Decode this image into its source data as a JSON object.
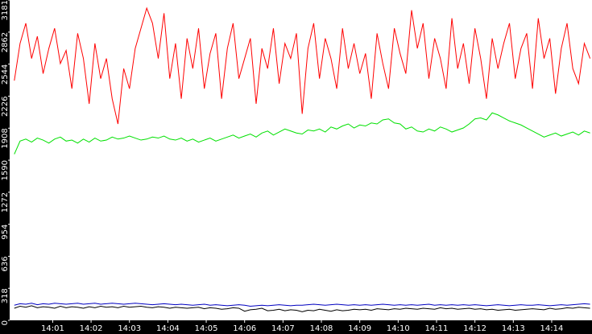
{
  "chart_data": {
    "type": "line",
    "x": [
      840,
      840.15,
      840.3,
      840.45,
      840.6,
      840.75,
      840.9,
      841.05,
      841.2,
      841.35,
      841.5,
      841.65,
      841.8,
      841.95,
      842.1,
      842.25,
      842.4,
      842.55,
      842.7,
      842.85,
      843,
      843.15,
      843.3,
      843.45,
      843.6,
      843.75,
      843.9,
      844.05,
      844.2,
      844.35,
      844.5,
      844.65,
      844.8,
      844.95,
      845.1,
      845.25,
      845.4,
      845.55,
      845.7,
      845.85,
      846,
      846.15,
      846.3,
      846.45,
      846.6,
      846.75,
      846.9,
      847.05,
      847.2,
      847.35,
      847.5,
      847.65,
      847.8,
      847.95,
      848.1,
      848.25,
      848.4,
      848.55,
      848.7,
      848.85,
      849,
      849.15,
      849.3,
      849.45,
      849.6,
      849.75,
      849.9,
      850.05,
      850.2,
      850.35,
      850.5,
      850.65,
      850.8,
      850.95,
      851.1,
      851.25,
      851.4,
      851.55,
      851.7,
      851.85,
      852,
      852.15,
      852.3,
      852.45,
      852.6,
      852.75,
      852.9,
      853.05,
      853.2,
      853.35,
      853.5,
      853.65,
      853.8,
      853.95,
      854.1,
      854.25,
      854.4,
      854.55,
      854.7,
      854.85,
      855
    ],
    "series": [
      {
        "color": "#ff0000",
        "values": [
          2380,
          2750,
          2950,
          2600,
          2820,
          2450,
          2700,
          2900,
          2550,
          2680,
          2300,
          2850,
          2600,
          2150,
          2750,
          2400,
          2600,
          2200,
          1950,
          2500,
          2300,
          2700,
          2900,
          3100,
          2950,
          2600,
          3050,
          2400,
          2750,
          2200,
          2800,
          2500,
          2900,
          2300,
          2650,
          2850,
          2200,
          2700,
          2950,
          2400,
          2600,
          2800,
          2150,
          2700,
          2500,
          2900,
          2350,
          2750,
          2600,
          2850,
          2050,
          2700,
          2950,
          2400,
          2800,
          2600,
          2300,
          2900,
          2500,
          2750,
          2450,
          2650,
          2200,
          2850,
          2550,
          2300,
          2900,
          2650,
          2450,
          3080,
          2700,
          2950,
          2400,
          2800,
          2600,
          2300,
          3000,
          2500,
          2750,
          2350,
          2900,
          2600,
          2200,
          2800,
          2500,
          2750,
          2950,
          2400,
          2700,
          2850,
          2300,
          3000,
          2600,
          2800,
          2250,
          2700,
          2950,
          2500,
          2350,
          2750,
          2600
        ]
      },
      {
        "color": "#00e000",
        "values": [
          1650,
          1780,
          1800,
          1770,
          1810,
          1790,
          1760,
          1800,
          1820,
          1780,
          1790,
          1760,
          1800,
          1770,
          1810,
          1780,
          1790,
          1820,
          1800,
          1810,
          1830,
          1810,
          1790,
          1800,
          1820,
          1810,
          1830,
          1800,
          1790,
          1810,
          1780,
          1800,
          1770,
          1790,
          1810,
          1780,
          1800,
          1820,
          1840,
          1810,
          1830,
          1850,
          1820,
          1860,
          1880,
          1840,
          1870,
          1900,
          1880,
          1860,
          1850,
          1890,
          1880,
          1900,
          1870,
          1920,
          1900,
          1930,
          1950,
          1910,
          1940,
          1930,
          1960,
          1950,
          1990,
          2000,
          1960,
          1950,
          1900,
          1920,
          1880,
          1870,
          1900,
          1880,
          1920,
          1900,
          1870,
          1890,
          1910,
          1950,
          2000,
          2010,
          1990,
          2060,
          2040,
          2010,
          1980,
          1960,
          1940,
          1910,
          1880,
          1850,
          1820,
          1840,
          1860,
          1830,
          1850,
          1870,
          1840,
          1880,
          1860
        ]
      },
      {
        "color": "#0000c0",
        "values": [
          150,
          165,
          160,
          170,
          155,
          165,
          160,
          170,
          165,
          160,
          165,
          170,
          160,
          165,
          170,
          160,
          165,
          170,
          165,
          160,
          165,
          170,
          165,
          160,
          155,
          160,
          165,
          160,
          155,
          160,
          155,
          150,
          155,
          160,
          150,
          155,
          150,
          145,
          150,
          155,
          150,
          140,
          145,
          150,
          145,
          150,
          155,
          150,
          145,
          150,
          150,
          155,
          160,
          155,
          150,
          155,
          160,
          155,
          150,
          155,
          150,
          155,
          150,
          155,
          160,
          155,
          150,
          155,
          150,
          155,
          150,
          155,
          160,
          150,
          155,
          150,
          155,
          150,
          155,
          150,
          155,
          150,
          145,
          150,
          155,
          150,
          145,
          150,
          155,
          150,
          150,
          155,
          150,
          145,
          150,
          155,
          150,
          155,
          160,
          165,
          160
        ]
      },
      {
        "color": "#000000",
        "values": [
          120,
          140,
          130,
          145,
          125,
          135,
          130,
          120,
          140,
          125,
          135,
          130,
          120,
          135,
          125,
          140,
          130,
          135,
          125,
          140,
          130,
          135,
          140,
          130,
          125,
          135,
          130,
          120,
          130,
          125,
          120,
          125,
          130,
          115,
          125,
          120,
          110,
          115,
          125,
          120,
          90,
          105,
          110,
          120,
          95,
          100,
          110,
          95,
          105,
          100,
          85,
          100,
          95,
          110,
          100,
          90,
          105,
          95,
          100,
          110,
          105,
          110,
          100,
          115,
          110,
          105,
          115,
          110,
          120,
          115,
          110,
          120,
          115,
          110,
          125,
          115,
          120,
          110,
          115,
          120,
          110,
          115,
          105,
          110,
          100,
          105,
          110,
          100,
          105,
          110,
          115,
          110,
          105,
          120,
          110,
          115,
          125,
          120,
          130,
          125,
          120
        ]
      }
    ],
    "xlim": [
      839.9,
      855.05
    ],
    "xticks": [
      {
        "value": 841,
        "label": "14:01"
      },
      {
        "value": 842,
        "label": "14:02"
      },
      {
        "value": 843,
        "label": "14:03"
      },
      {
        "value": 844,
        "label": "14:04"
      },
      {
        "value": 845,
        "label": "14:05"
      },
      {
        "value": 846,
        "label": "14:06"
      },
      {
        "value": 847,
        "label": "14:07"
      },
      {
        "value": 848,
        "label": "14:08"
      },
      {
        "value": 849,
        "label": "14:09"
      },
      {
        "value": 850,
        "label": "14:10"
      },
      {
        "value": 851,
        "label": "14:11"
      },
      {
        "value": 852,
        "label": "14:12"
      },
      {
        "value": 853,
        "label": "14:13"
      },
      {
        "value": 854,
        "label": "14:14"
      }
    ],
    "ylim": [
      0,
      3181
    ],
    "yticks": [
      0,
      318,
      636,
      954,
      1272,
      1590,
      1908,
      2226,
      2544,
      2862,
      3181
    ]
  }
}
